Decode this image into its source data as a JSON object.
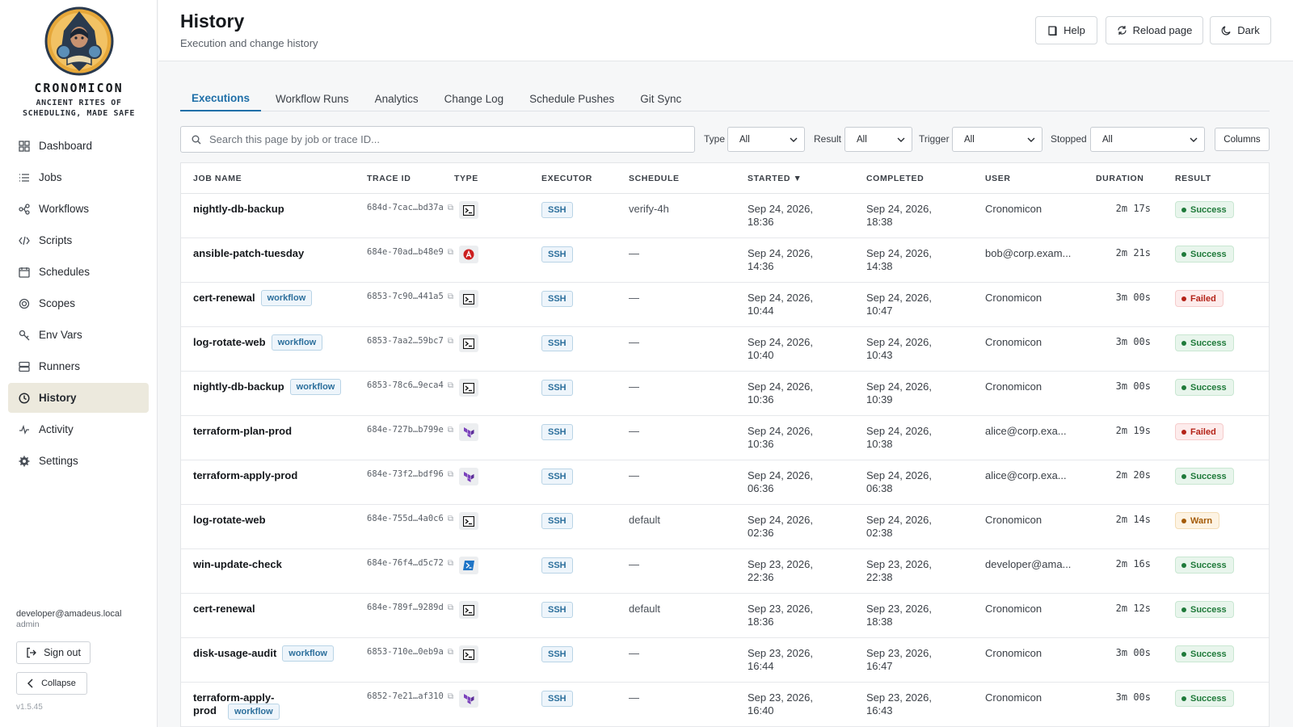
{
  "brand": {
    "title": "CRONOMICON",
    "subtitle": "ANCIENT RITES OF SCHEDULING, MADE SAFE"
  },
  "sidebar": {
    "items": [
      {
        "label": "Dashboard",
        "icon": "grid-icon"
      },
      {
        "label": "Jobs",
        "icon": "list-icon"
      },
      {
        "label": "Workflows",
        "icon": "workflow-icon"
      },
      {
        "label": "Scripts",
        "icon": "code-icon"
      },
      {
        "label": "Schedules",
        "icon": "calendar-icon"
      },
      {
        "label": "Scopes",
        "icon": "target-icon"
      },
      {
        "label": "Env Vars",
        "icon": "key-icon"
      },
      {
        "label": "Runners",
        "icon": "server-icon"
      },
      {
        "label": "History",
        "icon": "clock-icon",
        "active": true
      },
      {
        "label": "Activity",
        "icon": "activity-icon"
      },
      {
        "label": "Settings",
        "icon": "gear-icon"
      }
    ],
    "user_email": "developer@amadeus.local",
    "user_role": "admin",
    "sign_out": "Sign out",
    "collapse": "Collapse",
    "version": "v1.5.45"
  },
  "header": {
    "title": "History",
    "subtitle": "Execution and change history",
    "help": "Help",
    "reload": "Reload page",
    "theme": "Dark"
  },
  "tabs": [
    {
      "label": "Executions",
      "active": true
    },
    {
      "label": "Workflow Runs"
    },
    {
      "label": "Analytics"
    },
    {
      "label": "Change Log"
    },
    {
      "label": "Schedule Pushes"
    },
    {
      "label": "Git Sync"
    }
  ],
  "filters": {
    "search_placeholder": "Search this page by job or trace ID...",
    "type_label": "Type",
    "type_value": "All",
    "result_label": "Result",
    "result_value": "All",
    "trigger_label": "Trigger",
    "trigger_value": "All",
    "stopped_label": "Stopped",
    "stopped_value": "All",
    "columns_button": "Columns"
  },
  "table": {
    "headers": {
      "job_name": "JOB NAME",
      "trace_id": "TRACE ID",
      "type": "TYPE",
      "executor": "EXECUTOR",
      "schedule": "SCHEDULE",
      "started": "STARTED ▼",
      "completed": "COMPLETED",
      "user": "USER",
      "duration": "DURATION",
      "result": "RESULT"
    },
    "workflow_badge": "workflow",
    "rows": [
      {
        "job": "nightly-db-backup",
        "workflow": false,
        "trace": "684d-7cac…bd37a",
        "type": "terminal-icon",
        "executor": "SSH",
        "schedule": "verify-4h",
        "started_date": "Sep 24, 2026,",
        "started_time": "18:36",
        "completed_date": "Sep 24, 2026,",
        "completed_time": "18:38",
        "user": "Cronomicon",
        "duration": "2m 17s",
        "result": "Success"
      },
      {
        "job": "ansible-patch-tuesday",
        "workflow": false,
        "trace": "684e-70ad…b48e9",
        "type": "ansible-icon",
        "executor": "SSH",
        "schedule": "—",
        "started_date": "Sep 24, 2026,",
        "started_time": "14:36",
        "completed_date": "Sep 24, 2026,",
        "completed_time": "14:38",
        "user": "bob@corp.exam...",
        "duration": "2m 21s",
        "result": "Success"
      },
      {
        "job": "cert-renewal",
        "workflow": true,
        "trace": "6853-7c90…441a5",
        "type": "terminal-icon",
        "executor": "SSH",
        "schedule": "—",
        "started_date": "Sep 24, 2026,",
        "started_time": "10:44",
        "completed_date": "Sep 24, 2026,",
        "completed_time": "10:47",
        "user": "Cronomicon",
        "duration": "3m 00s",
        "result": "Failed"
      },
      {
        "job": "log-rotate-web",
        "workflow": true,
        "trace": "6853-7aa2…59bc7",
        "type": "terminal-icon",
        "executor": "SSH",
        "schedule": "—",
        "started_date": "Sep 24, 2026,",
        "started_time": "10:40",
        "completed_date": "Sep 24, 2026,",
        "completed_time": "10:43",
        "user": "Cronomicon",
        "duration": "3m 00s",
        "result": "Success"
      },
      {
        "job": "nightly-db-backup",
        "workflow": true,
        "trace": "6853-78c6…9eca4",
        "type": "terminal-icon",
        "executor": "SSH",
        "schedule": "—",
        "started_date": "Sep 24, 2026,",
        "started_time": "10:36",
        "completed_date": "Sep 24, 2026,",
        "completed_time": "10:39",
        "user": "Cronomicon",
        "duration": "3m 00s",
        "result": "Success"
      },
      {
        "job": "terraform-plan-prod",
        "workflow": false,
        "trace": "684e-727b…b799e",
        "type": "terraform-icon",
        "executor": "SSH",
        "schedule": "—",
        "started_date": "Sep 24, 2026,",
        "started_time": "10:36",
        "completed_date": "Sep 24, 2026,",
        "completed_time": "10:38",
        "user": "alice@corp.exa...",
        "duration": "2m 19s",
        "result": "Failed"
      },
      {
        "job": "terraform-apply-prod",
        "workflow": false,
        "trace": "684e-73f2…bdf96",
        "type": "terraform-icon",
        "executor": "SSH",
        "schedule": "—",
        "started_date": "Sep 24, 2026,",
        "started_time": "06:36",
        "completed_date": "Sep 24, 2026,",
        "completed_time": "06:38",
        "user": "alice@corp.exa...",
        "duration": "2m 20s",
        "result": "Success"
      },
      {
        "job": "log-rotate-web",
        "workflow": false,
        "trace": "684e-755d…4a0c6",
        "type": "terminal-icon",
        "executor": "SSH",
        "schedule": "default",
        "started_date": "Sep 24, 2026,",
        "started_time": "02:36",
        "completed_date": "Sep 24, 2026,",
        "completed_time": "02:38",
        "user": "Cronomicon",
        "duration": "2m 14s",
        "result": "Warn"
      },
      {
        "job": "win-update-check",
        "workflow": false,
        "trace": "684e-76f4…d5c72",
        "type": "powershell-icon",
        "executor": "SSH",
        "schedule": "—",
        "started_date": "Sep 23, 2026,",
        "started_time": "22:36",
        "completed_date": "Sep 23, 2026,",
        "completed_time": "22:38",
        "user": "developer@ama...",
        "duration": "2m 16s",
        "result": "Success"
      },
      {
        "job": "cert-renewal",
        "workflow": false,
        "trace": "684e-789f…9289d",
        "type": "terminal-icon",
        "executor": "SSH",
        "schedule": "default",
        "started_date": "Sep 23, 2026,",
        "started_time": "18:36",
        "completed_date": "Sep 23, 2026,",
        "completed_time": "18:38",
        "user": "Cronomicon",
        "duration": "2m 12s",
        "result": "Success"
      },
      {
        "job": "disk-usage-audit",
        "workflow": true,
        "trace": "6853-710e…0eb9a",
        "type": "terminal-icon",
        "executor": "SSH",
        "schedule": "—",
        "started_date": "Sep 23, 2026,",
        "started_time": "16:44",
        "completed_date": "Sep 23, 2026,",
        "completed_time": "16:47",
        "user": "Cronomicon",
        "duration": "3m 00s",
        "result": "Success"
      },
      {
        "job": "terraform-apply-prod",
        "workflow": true,
        "trace": "6852-7e21…af310",
        "type": "terraform-icon",
        "executor": "SSH",
        "schedule": "—",
        "started_date": "Sep 23, 2026,",
        "started_time": "16:40",
        "completed_date": "Sep 23, 2026,",
        "completed_time": "16:43",
        "user": "Cronomicon",
        "duration": "3m 00s",
        "result": "Success"
      }
    ]
  },
  "colors": {
    "accent": "#1f6fa8",
    "success": "#1f7a3a",
    "failed": "#b42318",
    "warn": "#a45b07",
    "active_nav_bg": "#ece9dd"
  }
}
